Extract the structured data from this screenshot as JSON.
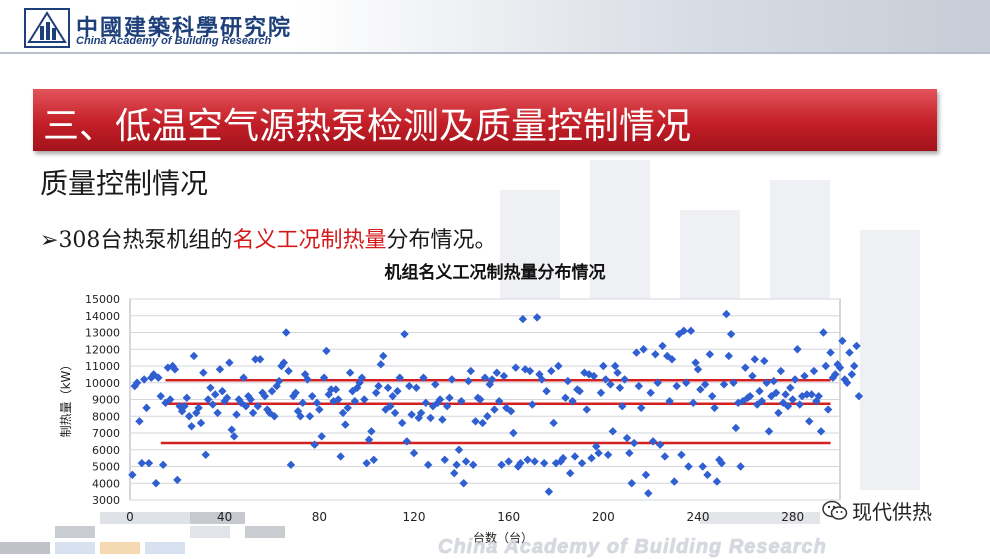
{
  "header": {
    "org_name_cn": "中國建築科學研究院",
    "org_name_en": "China Academy of Building Research",
    "logo_icon": "chinabr-logo-icon"
  },
  "slide": {
    "title": "三、低温空气源热泵检测及质量控制情况",
    "subtitle": "质量控制情况",
    "bullet_marker": "➢",
    "bullet_prefix": "308台热泵机组的",
    "bullet_highlight": "名义工况制热量",
    "bullet_suffix": "分布情况。"
  },
  "chart_data": {
    "type": "scatter",
    "title": "机组名义工况制热量分布情况",
    "xlabel": "台数（台）",
    "ylabel": "制热量（kW）",
    "xlim": [
      0,
      300
    ],
    "ylim": [
      3000,
      15000
    ],
    "xticks": [
      0,
      40,
      80,
      120,
      160,
      200,
      240,
      280
    ],
    "yticks": [
      3000,
      4000,
      5000,
      6000,
      7000,
      8000,
      9000,
      10000,
      11000,
      12000,
      13000,
      14000,
      15000
    ],
    "grid": true,
    "marker_color": "#2f5fd0",
    "reference_lines": [
      {
        "y": 10150,
        "x_start": 15,
        "x_end": 296,
        "color": "#d42020"
      },
      {
        "y": 8750,
        "x_start": 15,
        "x_end": 296,
        "color": "#d42020"
      },
      {
        "y": 6400,
        "x_start": 13,
        "x_end": 296,
        "color": "#d42020"
      }
    ],
    "points": [
      [
        1,
        4500
      ],
      [
        2,
        9800
      ],
      [
        3,
        10000
      ],
      [
        4,
        7700
      ],
      [
        5,
        5200
      ],
      [
        6,
        10200
      ],
      [
        7,
        8500
      ],
      [
        8,
        5200
      ],
      [
        9,
        10300
      ],
      [
        10,
        10500
      ],
      [
        11,
        4000
      ],
      [
        12,
        10300
      ],
      [
        13,
        9200
      ],
      [
        14,
        5100
      ],
      [
        15,
        8800
      ],
      [
        16,
        10900
      ],
      [
        17,
        9000
      ],
      [
        18,
        11000
      ],
      [
        19,
        10800
      ],
      [
        20,
        4200
      ],
      [
        21,
        8600
      ],
      [
        22,
        8300
      ],
      [
        23,
        8600
      ],
      [
        24,
        9100
      ],
      [
        25,
        8000
      ],
      [
        26,
        7400
      ],
      [
        27,
        11600
      ],
      [
        28,
        8200
      ],
      [
        29,
        8500
      ],
      [
        30,
        7600
      ],
      [
        31,
        10600
      ],
      [
        32,
        5700
      ],
      [
        33,
        9000
      ],
      [
        34,
        9700
      ],
      [
        35,
        8700
      ],
      [
        36,
        9300
      ],
      [
        37,
        8200
      ],
      [
        38,
        10800
      ],
      [
        39,
        9500
      ],
      [
        40,
        8900
      ],
      [
        41,
        9100
      ],
      [
        42,
        11200
      ],
      [
        43,
        7200
      ],
      [
        44,
        6800
      ],
      [
        45,
        8100
      ],
      [
        46,
        9000
      ],
      [
        47,
        8800
      ],
      [
        48,
        10300
      ],
      [
        49,
        8600
      ],
      [
        50,
        9200
      ],
      [
        51,
        9000
      ],
      [
        52,
        8200
      ],
      [
        53,
        11400
      ],
      [
        54,
        8600
      ],
      [
        55,
        11400
      ],
      [
        56,
        9400
      ],
      [
        57,
        9200
      ],
      [
        58,
        8400
      ],
      [
        59,
        8200
      ],
      [
        60,
        9500
      ],
      [
        61,
        8000
      ],
      [
        62,
        9800
      ],
      [
        63,
        10100
      ],
      [
        64,
        11000
      ],
      [
        65,
        11200
      ],
      [
        66,
        13000
      ],
      [
        67,
        10700
      ],
      [
        68,
        5100
      ],
      [
        69,
        9200
      ],
      [
        70,
        9400
      ],
      [
        71,
        8300
      ],
      [
        72,
        8000
      ],
      [
        73,
        8800
      ],
      [
        74,
        10500
      ],
      [
        75,
        10200
      ],
      [
        76,
        8000
      ],
      [
        77,
        9200
      ],
      [
        78,
        6300
      ],
      [
        79,
        8800
      ],
      [
        80,
        8400
      ],
      [
        81,
        6800
      ],
      [
        82,
        10300
      ],
      [
        83,
        11900
      ],
      [
        84,
        9300
      ],
      [
        85,
        9600
      ],
      [
        86,
        8900
      ],
      [
        87,
        9600
      ],
      [
        88,
        9000
      ],
      [
        89,
        5600
      ],
      [
        90,
        8200
      ],
      [
        91,
        7500
      ],
      [
        92,
        8500
      ],
      [
        93,
        10600
      ],
      [
        94,
        9500
      ],
      [
        95,
        8900
      ],
      [
        96,
        9700
      ],
      [
        97,
        10000
      ],
      [
        98,
        10300
      ],
      [
        99,
        9000
      ],
      [
        100,
        5200
      ],
      [
        101,
        6600
      ],
      [
        102,
        7100
      ],
      [
        103,
        5400
      ],
      [
        104,
        9400
      ],
      [
        105,
        9800
      ],
      [
        106,
        11100
      ],
      [
        107,
        11600
      ],
      [
        108,
        8400
      ],
      [
        109,
        9700
      ],
      [
        110,
        8600
      ],
      [
        111,
        9200
      ],
      [
        112,
        8200
      ],
      [
        113,
        9500
      ],
      [
        114,
        10300
      ],
      [
        115,
        7600
      ],
      [
        116,
        12900
      ],
      [
        117,
        6500
      ],
      [
        118,
        9800
      ],
      [
        119,
        8100
      ],
      [
        120,
        5800
      ],
      [
        121,
        9700
      ],
      [
        122,
        7900
      ],
      [
        123,
        8200
      ],
      [
        124,
        10300
      ],
      [
        125,
        8800
      ],
      [
        126,
        5100
      ],
      [
        127,
        7900
      ],
      [
        128,
        8600
      ],
      [
        129,
        9900
      ],
      [
        130,
        8800
      ],
      [
        131,
        9000
      ],
      [
        132,
        7800
      ],
      [
        133,
        5400
      ],
      [
        134,
        8600
      ],
      [
        135,
        9100
      ],
      [
        136,
        10200
      ],
      [
        137,
        4600
      ],
      [
        138,
        5100
      ],
      [
        139,
        6000
      ],
      [
        140,
        8900
      ],
      [
        141,
        4000
      ],
      [
        142,
        5300
      ],
      [
        143,
        10100
      ],
      [
        144,
        10700
      ],
      [
        145,
        5100
      ],
      [
        146,
        7700
      ],
      [
        147,
        9100
      ],
      [
        148,
        9000
      ],
      [
        149,
        7600
      ],
      [
        150,
        10300
      ],
      [
        151,
        8000
      ],
      [
        152,
        9900
      ],
      [
        153,
        10200
      ],
      [
        154,
        8400
      ],
      [
        155,
        10600
      ],
      [
        156,
        8900
      ],
      [
        157,
        5100
      ],
      [
        158,
        10400
      ],
      [
        159,
        8500
      ],
      [
        160,
        5300
      ],
      [
        161,
        8300
      ],
      [
        162,
        7000
      ],
      [
        163,
        10900
      ],
      [
        164,
        5000
      ],
      [
        165,
        5200
      ],
      [
        166,
        13800
      ],
      [
        167,
        10800
      ],
      [
        168,
        5400
      ],
      [
        169,
        10700
      ],
      [
        170,
        8700
      ],
      [
        171,
        5300
      ],
      [
        172,
        13900
      ],
      [
        173,
        10500
      ],
      [
        174,
        10200
      ],
      [
        175,
        5200
      ],
      [
        176,
        9500
      ],
      [
        177,
        3500
      ],
      [
        178,
        10700
      ],
      [
        179,
        7600
      ],
      [
        180,
        5200
      ],
      [
        181,
        11000
      ],
      [
        182,
        5300
      ],
      [
        183,
        5500
      ],
      [
        184,
        9100
      ],
      [
        185,
        10100
      ],
      [
        186,
        4600
      ],
      [
        187,
        8900
      ],
      [
        188,
        5600
      ],
      [
        189,
        9600
      ],
      [
        190,
        9500
      ],
      [
        191,
        5200
      ],
      [
        192,
        10600
      ],
      [
        193,
        8400
      ],
      [
        194,
        10500
      ],
      [
        195,
        5500
      ],
      [
        196,
        10400
      ],
      [
        197,
        6200
      ],
      [
        198,
        5800
      ],
      [
        199,
        9400
      ],
      [
        200,
        11000
      ],
      [
        201,
        10200
      ],
      [
        202,
        5700
      ],
      [
        203,
        9900
      ],
      [
        204,
        7100
      ],
      [
        205,
        11000
      ],
      [
        206,
        10600
      ],
      [
        207,
        9700
      ],
      [
        208,
        8600
      ],
      [
        209,
        10200
      ],
      [
        210,
        6700
      ],
      [
        211,
        5800
      ],
      [
        212,
        4000
      ],
      [
        213,
        6400
      ],
      [
        214,
        11800
      ],
      [
        215,
        9800
      ],
      [
        216,
        8500
      ],
      [
        217,
        12000
      ],
      [
        218,
        4500
      ],
      [
        219,
        3400
      ],
      [
        220,
        9400
      ],
      [
        221,
        6500
      ],
      [
        222,
        11700
      ],
      [
        223,
        10000
      ],
      [
        224,
        6300
      ],
      [
        225,
        12200
      ],
      [
        226,
        5600
      ],
      [
        227,
        11600
      ],
      [
        228,
        8900
      ],
      [
        229,
        11400
      ],
      [
        230,
        4100
      ],
      [
        231,
        9800
      ],
      [
        232,
        12900
      ],
      [
        233,
        5700
      ],
      [
        234,
        13100
      ],
      [
        235,
        10000
      ],
      [
        236,
        5000
      ],
      [
        237,
        13100
      ],
      [
        238,
        8800
      ],
      [
        239,
        11200
      ],
      [
        240,
        10800
      ],
      [
        241,
        9600
      ],
      [
        242,
        5000
      ],
      [
        243,
        9900
      ],
      [
        244,
        4500
      ],
      [
        245,
        11700
      ],
      [
        246,
        9200
      ],
      [
        247,
        8500
      ],
      [
        248,
        4100
      ],
      [
        249,
        5400
      ],
      [
        250,
        5200
      ],
      [
        251,
        9900
      ],
      [
        252,
        14100
      ],
      [
        253,
        11600
      ],
      [
        254,
        12900
      ],
      [
        255,
        10000
      ],
      [
        256,
        7300
      ],
      [
        257,
        8800
      ],
      [
        258,
        5000
      ],
      [
        259,
        8900
      ],
      [
        260,
        10900
      ],
      [
        261,
        9100
      ],
      [
        262,
        9200
      ],
      [
        263,
        10400
      ],
      [
        264,
        11400
      ],
      [
        265,
        8700
      ],
      [
        266,
        9500
      ],
      [
        267,
        8900
      ],
      [
        268,
        11300
      ],
      [
        269,
        10000
      ],
      [
        270,
        7100
      ],
      [
        271,
        9200
      ],
      [
        272,
        10100
      ],
      [
        273,
        9400
      ],
      [
        274,
        8200
      ],
      [
        275,
        10700
      ],
      [
        276,
        8800
      ],
      [
        277,
        9300
      ],
      [
        278,
        8600
      ],
      [
        279,
        9700
      ],
      [
        280,
        9000
      ],
      [
        281,
        10200
      ],
      [
        282,
        12000
      ],
      [
        283,
        8700
      ],
      [
        284,
        9200
      ],
      [
        285,
        10400
      ],
      [
        286,
        9300
      ],
      [
        287,
        7700
      ],
      [
        288,
        9300
      ],
      [
        289,
        10700
      ],
      [
        290,
        8900
      ],
      [
        291,
        9200
      ],
      [
        292,
        7100
      ],
      [
        293,
        13000
      ],
      [
        294,
        11000
      ],
      [
        295,
        8400
      ],
      [
        296,
        11800
      ],
      [
        297,
        10300
      ],
      [
        298,
        10500
      ],
      [
        299,
        11100
      ],
      [
        300,
        10900
      ],
      [
        301,
        12500
      ],
      [
        302,
        10200
      ],
      [
        303,
        10000
      ],
      [
        304,
        11800
      ],
      [
        305,
        10500
      ],
      [
        306,
        11000
      ],
      [
        307,
        12200
      ],
      [
        308,
        9200
      ]
    ]
  },
  "brand": {
    "name": "现代供热",
    "icon": "wechat-icon"
  },
  "footer": {
    "org_name_en": "China Academy of Building Research"
  }
}
